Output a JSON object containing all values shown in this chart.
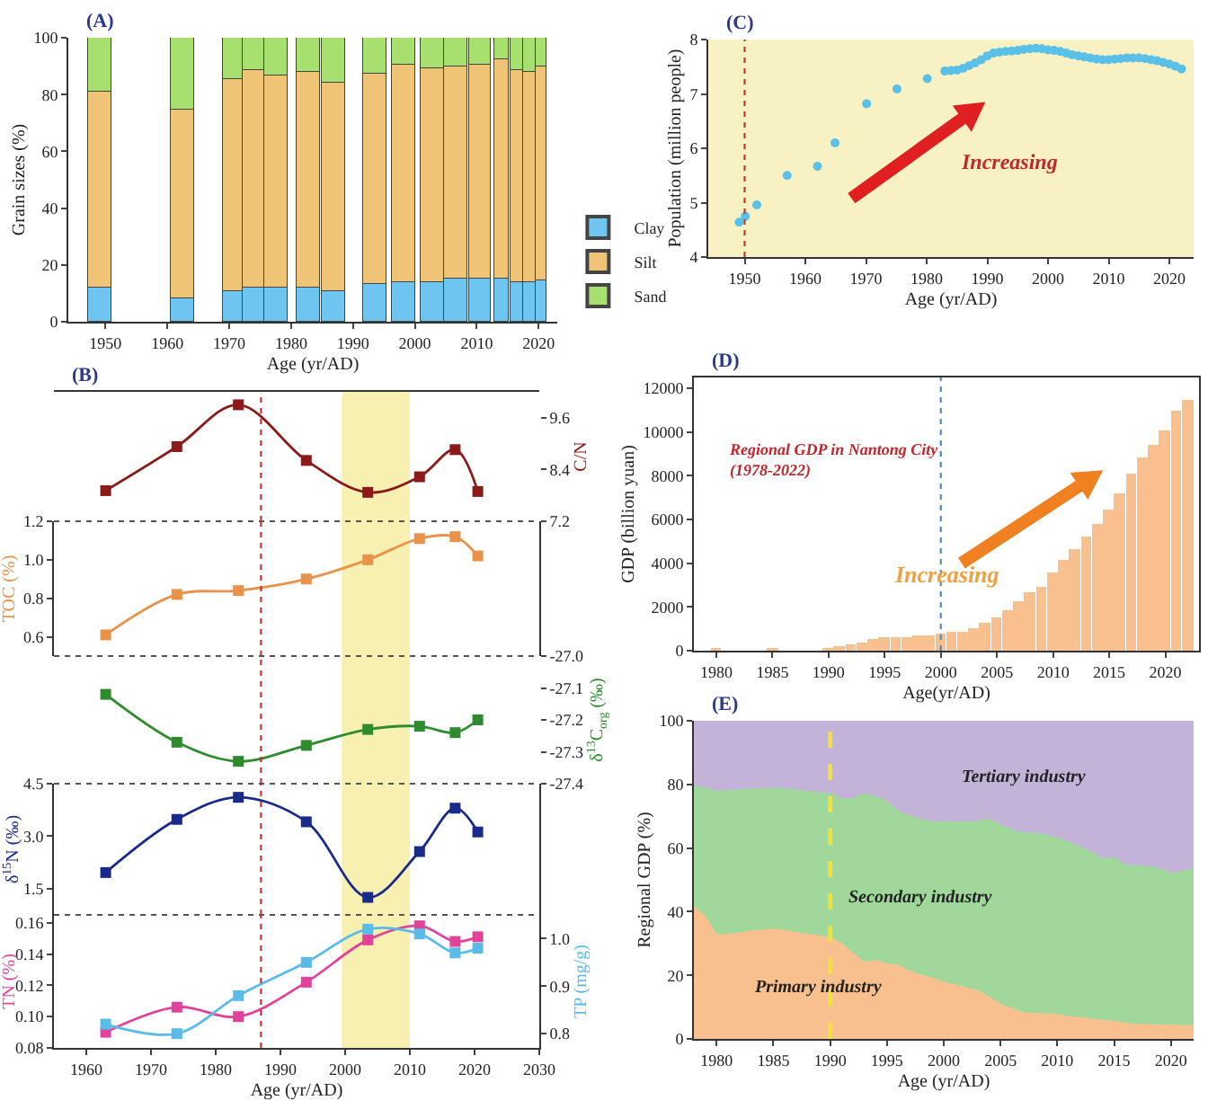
{
  "chart_data": [
    {
      "type": "bar",
      "title": "(A)",
      "xlabel": "Age (yr/AD)",
      "ylabel": "Grain sizes (%)",
      "stacked": true,
      "legend": "bottom right",
      "x": [
        1949.1,
        1962.5,
        1970.6,
        1973.9,
        1977.6,
        1982.8,
        1986.9,
        1993.5,
        1998.2,
        2002.7,
        2006.6,
        2010.6,
        2014.0,
        2016.5,
        2018.5,
        2020.3
      ],
      "series": [
        {
          "name": "Clay",
          "color": "#6ec6f0",
          "values": [
            12,
            8,
            11,
            12,
            12,
            12,
            11,
            13,
            14,
            14,
            15,
            15,
            15,
            14,
            14,
            14.5
          ]
        },
        {
          "name": "Silt",
          "color": "#f0c477",
          "values": [
            69.2,
            66.5,
            74.3,
            76.7,
            74.8,
            75.7,
            72.9,
            74.2,
            76.4,
            75.4,
            74.8,
            75.4,
            77.3,
            74.5,
            74.1,
            75.3
          ]
        },
        {
          "name": "Sand",
          "color": "#a8e070",
          "values": [
            18.8,
            25.5,
            14.7,
            11.3,
            13.2,
            12.3,
            16.1,
            12.8,
            9.6,
            10.6,
            10.2,
            9.6,
            7.7,
            11.5,
            11.9,
            10.2
          ]
        }
      ],
      "xlim": [
        1944,
        2023
      ],
      "xticks": [
        1950,
        1960,
        1970,
        1980,
        1990,
        2000,
        2010,
        2020
      ],
      "ylim": [
        0,
        100
      ],
      "yticks": [
        0,
        20,
        40,
        60,
        80,
        100
      ]
    },
    {
      "type": "scatter",
      "title": "(C)",
      "xlabel": "Age (yr/AD)",
      "ylabel": "Population (million people)",
      "marker": "circle",
      "annotations": [
        "Increasing"
      ],
      "x": [
        1949.1,
        1950.1,
        1952,
        1957,
        1962,
        1964.9,
        1970.1,
        1975.1,
        1980.1,
        1983,
        1984,
        1985,
        1986,
        1987,
        1988,
        1989,
        1990,
        1991,
        1992,
        1993,
        1994,
        1995,
        1996,
        1997,
        1998,
        1999,
        2000,
        2001,
        2002,
        2003,
        2004,
        2005,
        2006,
        2007,
        2008,
        2009,
        2010,
        2011,
        2012,
        2013,
        2014,
        2015,
        2016,
        2017,
        2018,
        2019,
        2020,
        2021,
        2022
      ],
      "series": [
        {
          "color": "#5bc0e8",
          "values": [
            4.64,
            4.75,
            4.96,
            5.5,
            5.67,
            6.1,
            6.82,
            7.09,
            7.28,
            7.42,
            7.43,
            7.44,
            7.47,
            7.52,
            7.57,
            7.63,
            7.7,
            7.75,
            7.77,
            7.78,
            7.79,
            7.8,
            7.82,
            7.83,
            7.84,
            7.83,
            7.81,
            7.8,
            7.78,
            7.75,
            7.72,
            7.7,
            7.68,
            7.66,
            7.64,
            7.63,
            7.63,
            7.64,
            7.65,
            7.66,
            7.66,
            7.66,
            7.65,
            7.63,
            7.61,
            7.58,
            7.55,
            7.51,
            7.46
          ]
        }
      ],
      "ref_lines": [
        {
          "axis": "x",
          "value": 1950,
          "color": "#c0392b",
          "line_style": "dotted"
        }
      ],
      "xlim": [
        1944,
        2024
      ],
      "xticks": [
        1950,
        1960,
        1970,
        1980,
        1990,
        2000,
        2010,
        2020
      ],
      "ylim": [
        4,
        8
      ],
      "yticks": [
        4,
        5,
        6,
        7,
        8
      ]
    },
    {
      "type": "line",
      "title": "(B)",
      "y2label": "C/N",
      "marker": "square",
      "tick_labels": "y",
      "x": [
        1963,
        1974,
        1983.5,
        1994,
        2003.5,
        2011.5,
        2017,
        2020.5
      ],
      "series": [
        {
          "color": "#8b1a1a",
          "axis": "y2",
          "values": [
            7.91,
            8.93,
            9.9,
            8.61,
            7.87,
            8.23,
            8.86,
            7.89
          ]
        }
      ],
      "ref_lines": [
        {
          "axis": "x",
          "value": 1987,
          "color": "#d03030",
          "line_style": "dotted"
        }
      ],
      "bands": [
        {
          "axis": "x",
          "from": 1999.5,
          "to": 2010,
          "color": "#f7f0b0"
        }
      ],
      "xlim": [
        1955,
        2030
      ],
      "xticks": [
        1960,
        1970,
        1980,
        1990,
        2000,
        2010,
        2020,
        2030
      ],
      "y2lim": [
        7.2,
        10.2
      ],
      "y2ticks": [
        7.2,
        8.4,
        9.6
      ]
    },
    {
      "type": "line",
      "ylabel": "TOC (%)",
      "marker": "square",
      "tick_labels": "y",
      "x": [
        1963,
        1974,
        1983.5,
        1994,
        2003.5,
        2011.5,
        2017,
        2020.5
      ],
      "series": [
        {
          "color": "#e8924a",
          "values": [
            0.61,
            0.82,
            0.84,
            0.9,
            1.0,
            1.11,
            1.12,
            1.02
          ]
        }
      ],
      "ref_lines": [
        {
          "axis": "x",
          "value": 1987,
          "color": "#d03030",
          "line_style": "dotted"
        }
      ],
      "bands": [
        {
          "axis": "x",
          "from": 1999.5,
          "to": 2010,
          "color": "#f7f0b0"
        }
      ],
      "xlim": [
        1955,
        2030
      ],
      "xticks": [
        1960,
        1970,
        1980,
        1990,
        2000,
        2010,
        2020,
        2030
      ],
      "ylim": [
        0.5,
        1.2
      ],
      "yticks": [
        0.6,
        0.8,
        {
          "value": 1,
          "label": "1.0"
        },
        1.2
      ]
    },
    {
      "type": "line",
      "y2label": "δ$^{13}$C$_{org}$ (‰)",
      "marker": "square",
      "tick_labels": "y",
      "x": [
        1963,
        1974,
        1983.5,
        1994,
        2003.5,
        2011.5,
        2017,
        2020.5
      ],
      "series": [
        {
          "color": "#2e8b2e",
          "axis": "y2",
          "values": [
            -27.12,
            -27.27,
            -27.33,
            -27.28,
            -27.23,
            -27.22,
            -27.24,
            -27.2
          ]
        }
      ],
      "ref_lines": [
        {
          "axis": "x",
          "value": 1987,
          "color": "#d03030",
          "line_style": "dotted"
        }
      ],
      "bands": [
        {
          "axis": "x",
          "from": 1999.5,
          "to": 2010,
          "color": "#f7f0b0"
        }
      ],
      "xlim": [
        1955,
        2030
      ],
      "xticks": [
        1960,
        1970,
        1980,
        1990,
        2000,
        2010,
        2020,
        2030
      ],
      "y2lim": [
        -27.4,
        -27.0
      ],
      "y2ticks": [
        -27.4,
        -27.3,
        -27.2,
        -27.1,
        {
          "value": -27,
          "label": "-27.0"
        }
      ]
    },
    {
      "type": "line",
      "ylabel": "δ$^{15}$N (‰)",
      "marker": "square",
      "tick_labels": "y",
      "x": [
        1963,
        1974,
        1983.5,
        1994,
        2003.5,
        2011.5,
        2017,
        2020.5
      ],
      "series": [
        {
          "color": "#1a2a8a",
          "values": [
            1.96,
            3.48,
            4.11,
            3.41,
            1.25,
            2.56,
            3.8,
            3.12
          ]
        }
      ],
      "ref_lines": [
        {
          "axis": "x",
          "value": 1987,
          "color": "#d03030",
          "line_style": "dotted"
        }
      ],
      "bands": [
        {
          "axis": "x",
          "from": 1999.5,
          "to": 2010,
          "color": "#f7f0b0"
        }
      ],
      "xlim": [
        1955,
        2030
      ],
      "xticks": [
        1960,
        1970,
        1980,
        1990,
        2000,
        2010,
        2020,
        2030
      ],
      "ylim": [
        0.75,
        4.5
      ],
      "yticks": [
        1.5,
        {
          "value": 3,
          "label": "3.0"
        },
        4.5
      ]
    },
    {
      "type": "line",
      "xlabel": "Age (yr/AD)",
      "ylabel": "TN (%)",
      "y2label": "TP (mg/g)",
      "marker": "square",
      "x": [
        1963,
        1974,
        1983.5,
        1994,
        2003.5,
        2011.5,
        2017,
        2020.5
      ],
      "series": [
        {
          "color": "#e0449a",
          "values": [
            0.09,
            0.106,
            0.1,
            0.122,
            0.149,
            0.158,
            0.148,
            0.151
          ]
        },
        {
          "color": "#5bbbe8",
          "axis": "y2",
          "values": [
            0.82,
            0.8,
            0.88,
            0.95,
            1.02,
            1.01,
            0.97,
            0.98
          ]
        }
      ],
      "ref_lines": [
        {
          "axis": "x",
          "value": 1987,
          "color": "#d03030",
          "line_style": "dotted"
        }
      ],
      "bands": [
        {
          "axis": "x",
          "from": 1999.5,
          "to": 2010,
          "color": "#f7f0b0"
        }
      ],
      "xlim": [
        1955,
        2030
      ],
      "xticks": [
        1960,
        1970,
        1980,
        1990,
        2000,
        2010,
        2020,
        2030
      ],
      "ylim": [
        0.08,
        0.165
      ],
      "yticks": [
        0.08,
        {
          "value": 0.1,
          "label": "0.10"
        },
        0.12,
        0.14,
        0.16
      ],
      "y2lim": [
        0.77,
        1.05
      ],
      "y2ticks": [
        0.8,
        0.9,
        {
          "value": 1,
          "label": "1.0"
        }
      ]
    },
    {
      "type": "bar",
      "title": "(D)",
      "xlabel": "Age(yr/AD)",
      "ylabel": "GDP (billion yuan)",
      "annotations": [
        "Regional GDP in Nantong City\n(1978-2022)",
        "Increasing"
      ],
      "x": [
        1980,
        1985,
        1990,
        1991,
        1992,
        1993,
        1994,
        1995,
        1996,
        1997,
        1998,
        1999,
        2000,
        2001,
        2002,
        2003,
        2004,
        2005,
        2006,
        2007,
        2008,
        2009,
        2010,
        2011,
        2012,
        2013,
        2014,
        2015,
        2016,
        2017,
        2018,
        2019,
        2020,
        2021,
        2022
      ],
      "series": [
        {
          "color": "#f9c08f",
          "values": [
            50,
            50,
            100,
            150,
            250,
            350,
            500,
            550,
            600,
            600,
            650,
            650,
            700,
            800,
            850,
            1000,
            1200,
            1500,
            1800,
            2200,
            2600,
            2900,
            3500,
            4100,
            4600,
            5200,
            5750,
            6450,
            7150,
            8050,
            8800,
            9400,
            10000,
            10950,
            11400
          ]
        }
      ],
      "ref_lines": [
        {
          "axis": "x",
          "value": 2000,
          "color": "#4a90c8",
          "line_style": "dotted"
        }
      ],
      "xlim": [
        1978,
        2023
      ],
      "xticks": [
        1980,
        1985,
        1990,
        1995,
        2000,
        2005,
        2010,
        2015,
        2020
      ],
      "ylim": [
        0,
        12500
      ],
      "yticks": [
        0,
        2000,
        4000,
        6000,
        8000,
        10000,
        12000
      ]
    },
    {
      "type": "area",
      "title": "(E)",
      "xlabel": "Age (yr/AD)",
      "ylabel": "Regional GDP (%)",
      "stacked": true,
      "x": [
        1978,
        1979,
        1980,
        1981,
        1982,
        1983,
        1984,
        1985,
        1986,
        1987,
        1988,
        1989,
        1990,
        1991,
        1992,
        1993,
        1994,
        1995,
        1996,
        1997,
        1998,
        1999,
        2000,
        2001,
        2002,
        2003,
        2004,
        2005,
        2006,
        2007,
        2008,
        2009,
        2010,
        2011,
        2012,
        2013,
        2014,
        2015,
        2016,
        2017,
        2018,
        2019,
        2020,
        2021,
        2022
      ],
      "series": [
        {
          "name": "Primary industry",
          "color": "#f9c08f",
          "values": [
            41.6,
            38.4,
            32.6,
            32.8,
            33.2,
            33.8,
            34.1,
            34.5,
            34.0,
            33.4,
            32.8,
            32.3,
            31.7,
            29.9,
            26.9,
            23.9,
            24.6,
            23.5,
            23.1,
            21.3,
            20.0,
            19.0,
            17.7,
            17.0,
            16.0,
            15.1,
            13.1,
            10.8,
            9.5,
            8.2,
            8.0,
            7.8,
            7.6,
            6.9,
            6.7,
            6.2,
            5.8,
            5.4,
            4.9,
            4.5,
            4.5,
            4.3,
            4.3,
            4.1,
            4.1
          ]
        },
        {
          "name": "Secondary industry",
          "color": "#9fd89a",
          "values": [
            37.7,
            40.3,
            45.2,
            45.2,
            45.0,
            44.6,
            44.4,
            44.2,
            44.5,
            44.8,
            45.0,
            45.1,
            45.4,
            45.5,
            48.5,
            53.0,
            51.5,
            51.1,
            48.4,
            48.7,
            49.0,
            49.3,
            50.4,
            51.1,
            52.1,
            53.2,
            55.9,
            56.4,
            56.2,
            56.5,
            56.6,
            56.2,
            55.5,
            54.9,
            53.7,
            52.4,
            50.7,
            51.5,
            49.8,
            49.8,
            49.6,
            49.2,
            47.6,
            48.5,
            49.4
          ]
        },
        {
          "name": "Tertiary industry",
          "color": "#c3b3d9",
          "values": [
            20.7,
            21.3,
            22.2,
            22.0,
            21.8,
            21.6,
            21.5,
            21.3,
            21.5,
            21.8,
            22.2,
            22.6,
            22.9,
            24.6,
            24.6,
            23.1,
            23.9,
            25.4,
            28.5,
            30.0,
            31.0,
            31.7,
            31.9,
            31.9,
            31.9,
            31.7,
            31.0,
            32.8,
            34.3,
            35.3,
            35.4,
            36.0,
            36.9,
            38.2,
            39.6,
            41.4,
            43.5,
            43.1,
            45.3,
            45.7,
            45.9,
            46.5,
            48.1,
            47.4,
            46.5
          ]
        }
      ],
      "ref_lines": [
        {
          "axis": "x",
          "value": 1990,
          "color": "#f0e040",
          "line_style": "dashed"
        }
      ],
      "xlim": [
        1978,
        2022
      ],
      "xticks": [
        1980,
        1985,
        1990,
        1995,
        2000,
        2005,
        2010,
        2015,
        2020
      ],
      "ylim": [
        0,
        100
      ],
      "yticks": [
        0,
        20,
        40,
        60,
        80,
        100
      ]
    }
  ]
}
